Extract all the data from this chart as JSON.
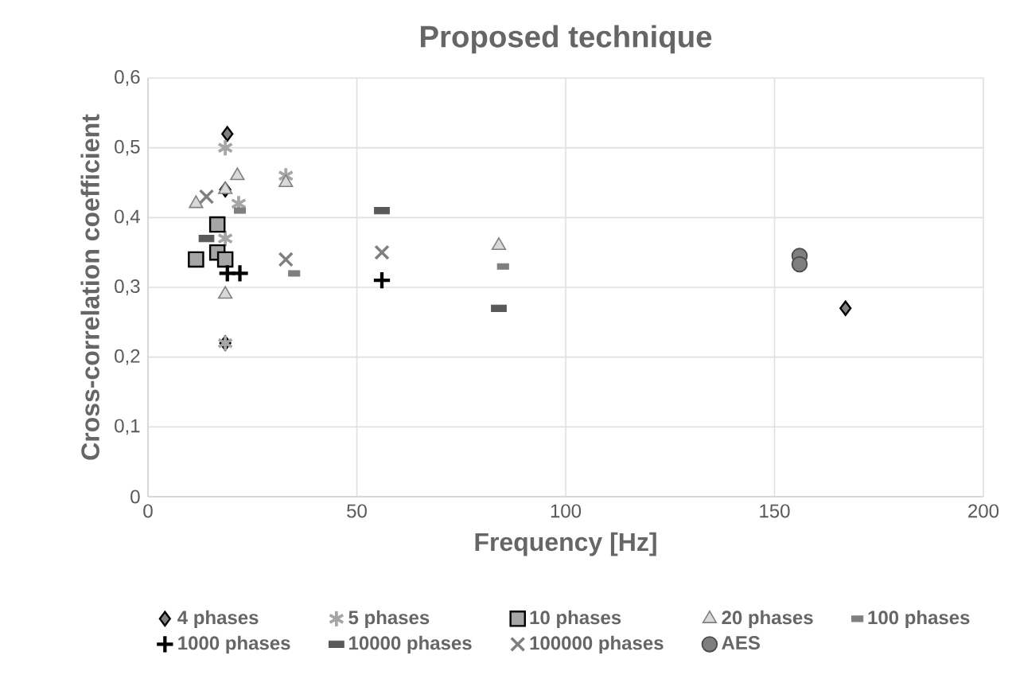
{
  "chart_data": {
    "type": "scatter",
    "title": "Proposed technique",
    "xlabel": "Frequency [Hz]",
    "ylabel": "Cross-correlation coefficient",
    "xlim": [
      0,
      200
    ],
    "xticks": [
      0,
      50,
      100,
      150,
      200
    ],
    "ylim": [
      0,
      0.6
    ],
    "yticks": [
      {
        "value": 0,
        "label": "0"
      },
      {
        "value": 0.1,
        "label": "0,1"
      },
      {
        "value": 0.2,
        "label": "0,2"
      },
      {
        "value": 0.3,
        "label": "0,3"
      },
      {
        "value": 0.4,
        "label": "0,4"
      },
      {
        "value": 0.5,
        "label": "0,5"
      },
      {
        "value": 0.6,
        "label": "0,6"
      }
    ],
    "grid": true,
    "legend": "bottom",
    "series": [
      {
        "name": "4 phases",
        "color": "#808080",
        "marker": "diamond",
        "x": [
          19,
          18.5,
          18.5,
          167
        ],
        "values": [
          0.52,
          0.44,
          0.22,
          0.27
        ]
      },
      {
        "name": "5 phases",
        "color": "#a6a6a6",
        "x": [
          18.5,
          21.7,
          18.5,
          33,
          18.5
        ],
        "values": [
          0.5,
          0.42,
          0.37,
          0.46,
          0.22
        ]
      },
      {
        "name": "10 phases",
        "color": "#a6a6a6",
        "marker": "square",
        "x": [
          16.6,
          11.5,
          16.6,
          18.5
        ],
        "values": [
          0.39,
          0.34,
          0.35,
          0.34
        ]
      },
      {
        "name": "20 phases",
        "color": "#d9d9d9",
        "marker": "triangle",
        "x": [
          21.4,
          11.5,
          18.5,
          33,
          84,
          18.5
        ],
        "values": [
          0.46,
          0.42,
          0.29,
          0.45,
          0.36,
          0.44
        ]
      },
      {
        "name": "100 phases",
        "color": "#7f7f7f",
        "x": [
          35,
          85,
          22
        ],
        "values": [
          0.32,
          0.33,
          0.41
        ]
      },
      {
        "name": "1000 phases",
        "color": "#000000",
        "marker": "plus",
        "x": [
          19,
          22,
          56
        ],
        "values": [
          0.32,
          0.32,
          0.31
        ]
      },
      {
        "name": "10000 phases",
        "color": "#595959",
        "x": [
          14,
          56,
          84
        ],
        "values": [
          0.37,
          0.41,
          0.27
        ]
      },
      {
        "name": "100000 phases",
        "color": "#7f7f7f",
        "marker": "cross",
        "x": [
          14,
          33,
          56
        ],
        "values": [
          0.43,
          0.34,
          0.35
        ]
      },
      {
        "name": "AES",
        "color": "#7f7f7f",
        "marker": "circle",
        "x": [
          156,
          156
        ],
        "values": [
          0.345,
          0.333
        ]
      }
    ]
  }
}
